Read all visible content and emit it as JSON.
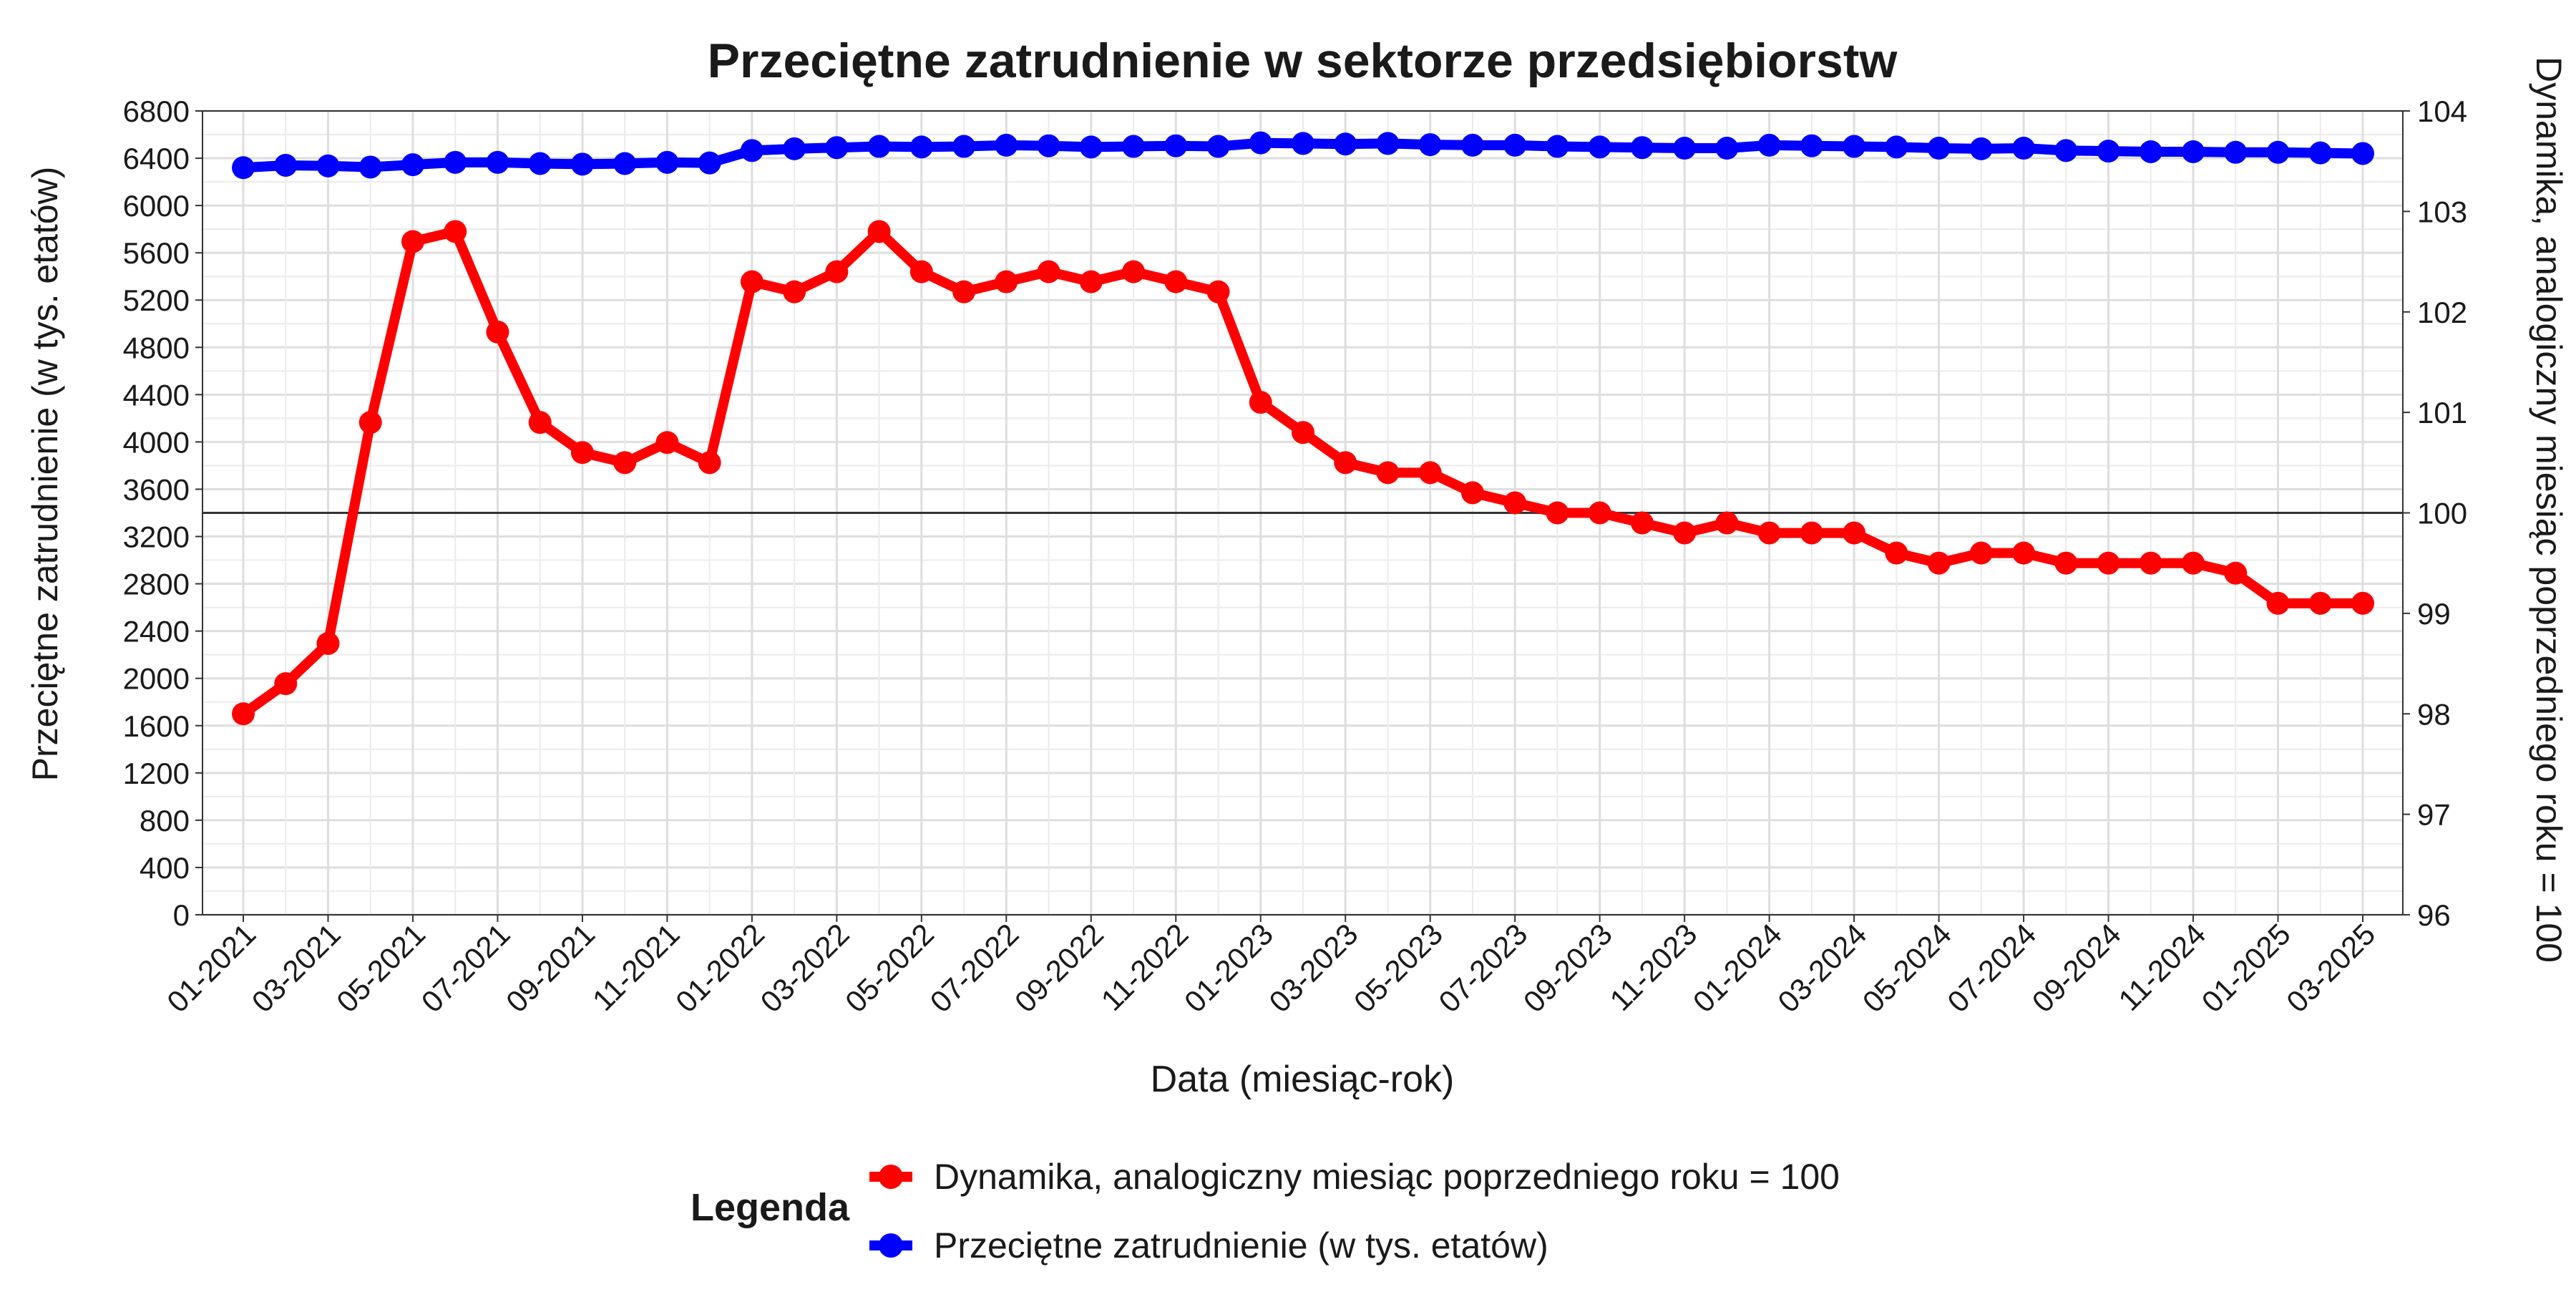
{
  "chart_data": {
    "type": "line",
    "title": "Przeciętne zatrudnienie w sektorze przedsiębiorstw",
    "xlabel": "Data (miesiąc-rok)",
    "ylabel_left": "Przeciętne zatrudnienie (w tys. etatów)",
    "ylabel_right": "Dynamika, analogiczny miesiąc poprzedniego roku = 100",
    "ylim_left": [
      0,
      6800
    ],
    "yticks_left": [
      0,
      400,
      800,
      1200,
      1600,
      2000,
      2400,
      2800,
      3200,
      3600,
      4000,
      4400,
      4800,
      5200,
      5600,
      6000,
      6400,
      6800
    ],
    "ylim_right": [
      96,
      104
    ],
    "yticks_right": [
      96,
      97,
      98,
      99,
      100,
      101,
      102,
      103,
      104
    ],
    "reference_line_right": 100,
    "grid": true,
    "legend_title": "Legenda",
    "legend_position": "bottom",
    "x": [
      "01-2021",
      "02-2021",
      "03-2021",
      "04-2021",
      "05-2021",
      "06-2021",
      "07-2021",
      "08-2021",
      "09-2021",
      "10-2021",
      "11-2021",
      "12-2021",
      "01-2022",
      "02-2022",
      "03-2022",
      "04-2022",
      "05-2022",
      "06-2022",
      "07-2022",
      "08-2022",
      "09-2022",
      "10-2022",
      "11-2022",
      "12-2022",
      "01-2023",
      "02-2023",
      "03-2023",
      "04-2023",
      "05-2023",
      "06-2023",
      "07-2023",
      "08-2023",
      "09-2023",
      "10-2023",
      "11-2023",
      "12-2023",
      "01-2024",
      "02-2024",
      "03-2024",
      "04-2024",
      "05-2024",
      "06-2024",
      "07-2024",
      "08-2024",
      "09-2024",
      "10-2024",
      "11-2024",
      "12-2024",
      "01-2025",
      "02-2025",
      "03-2025"
    ],
    "x_tick_labels": [
      "01-2021",
      "03-2021",
      "05-2021",
      "07-2021",
      "09-2021",
      "11-2021",
      "01-2022",
      "03-2022",
      "05-2022",
      "07-2022",
      "09-2022",
      "11-2022",
      "01-2023",
      "03-2023",
      "05-2023",
      "07-2023",
      "09-2023",
      "11-2023",
      "01-2024",
      "03-2024",
      "05-2024",
      "07-2024",
      "09-2024",
      "11-2024",
      "01-2025",
      "03-2025"
    ],
    "series": [
      {
        "name": "Dynamika, analogiczny miesiąc poprzedniego roku = 100",
        "axis": "right",
        "color": "#ff0000",
        "values": [
          98.0,
          98.3,
          98.7,
          100.9,
          102.7,
          102.8,
          101.8,
          100.9,
          100.6,
          100.5,
          100.7,
          100.5,
          102.3,
          102.2,
          102.4,
          102.8,
          102.4,
          102.2,
          102.3,
          102.4,
          102.3,
          102.4,
          102.3,
          102.2,
          101.1,
          100.8,
          100.5,
          100.4,
          100.4,
          100.2,
          100.1,
          100.0,
          100.0,
          99.9,
          99.8,
          99.9,
          99.8,
          99.8,
          99.8,
          99.6,
          99.5,
          99.6,
          99.6,
          99.5,
          99.5,
          99.5,
          99.5,
          99.4,
          99.1,
          99.1,
          99.1
        ]
      },
      {
        "name": "Przeciętne zatrudnienie (w tys. etatów)",
        "axis": "left",
        "color": "#0000ff",
        "values": [
          6320,
          6340,
          6335,
          6325,
          6345,
          6365,
          6365,
          6355,
          6350,
          6355,
          6365,
          6360,
          6465,
          6480,
          6490,
          6500,
          6495,
          6500,
          6510,
          6505,
          6495,
          6500,
          6505,
          6500,
          6530,
          6525,
          6520,
          6525,
          6515,
          6510,
          6510,
          6500,
          6495,
          6490,
          6485,
          6485,
          6510,
          6505,
          6500,
          6495,
          6485,
          6480,
          6485,
          6465,
          6460,
          6455,
          6455,
          6450,
          6450,
          6445,
          6440
        ]
      }
    ]
  }
}
